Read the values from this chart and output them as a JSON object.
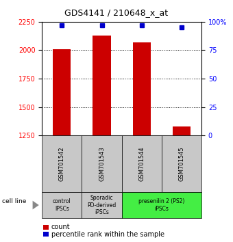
{
  "title": "GDS4141 / 210648_x_at",
  "samples": [
    "GSM701542",
    "GSM701543",
    "GSM701544",
    "GSM701545"
  ],
  "counts": [
    2010,
    2130,
    2070,
    1330
  ],
  "count_baseline": 1250,
  "percentiles": [
    97,
    97,
    97,
    95
  ],
  "ylim_left": [
    1250,
    2250
  ],
  "ylim_right": [
    0,
    100
  ],
  "yticks_left": [
    1250,
    1500,
    1750,
    2000,
    2250
  ],
  "yticks_right": [
    0,
    25,
    50,
    75,
    100
  ],
  "bar_color": "#cc0000",
  "dot_color": "#0000cc",
  "cell_line_groups": [
    {
      "label": "control\nIPSCs",
      "samples": [
        0
      ],
      "color": "#c8c8c8"
    },
    {
      "label": "Sporadic\nPD-derived\niPSCs",
      "samples": [
        1
      ],
      "color": "#c8c8c8"
    },
    {
      "label": "presenilin 2 (PS2)\niPSCs",
      "samples": [
        2,
        3
      ],
      "color": "#44ee44"
    }
  ],
  "legend_count_label": "count",
  "legend_percentile_label": "percentile rank within the sample",
  "cell_line_label": "cell line"
}
